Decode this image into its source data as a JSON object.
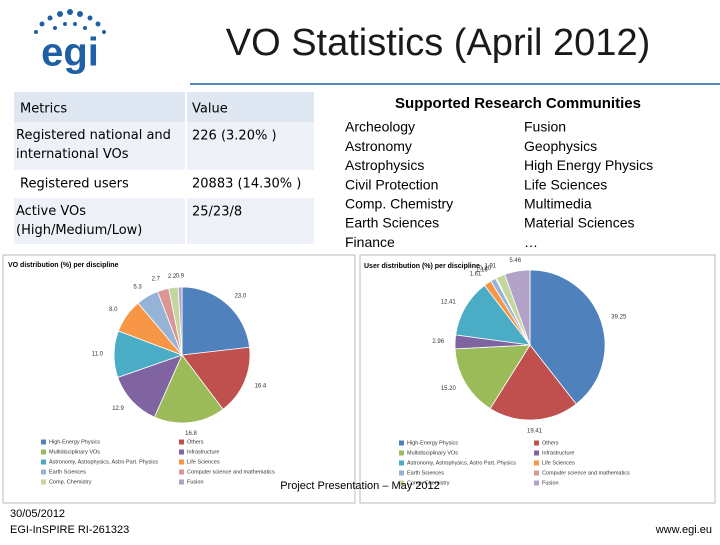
{
  "header": {
    "title": "VO Statistics (April 2012)"
  },
  "table": {
    "columns": [
      "Metrics",
      "Value"
    ],
    "rows": [
      [
        "Registered national and international VOs",
        "226 (3.20% )"
      ],
      [
        "Registered users",
        "20883 (14.30% )"
      ],
      [
        "Active VOs (High/Medium/Low)",
        "25/23/8"
      ]
    ]
  },
  "communities": {
    "title": "Supported Research Communities",
    "left": [
      "Archeology",
      "Astronomy",
      "Astrophysics",
      "Civil Protection",
      "Comp. Chemistry",
      "Earth Sciences",
      "Finance"
    ],
    "right": [
      "Fusion",
      "Geophysics",
      "High Energy Physics",
      "Life Sciences",
      "Multimedia",
      "Material Sciences",
      "…"
    ]
  },
  "chart_data": [
    {
      "type": "pie",
      "title": "VO distribution (%) per discipline",
      "categories": [
        "High-Energy Physics",
        "Others",
        "Multidisciplinary VOs",
        "Infrastructure",
        "Astronomy, Astrophysics, Astro Part. Physics",
        "Life Sciences",
        "Earth Sciences",
        "Computer science and mathematics",
        "Comp. Chemistry",
        "Fusion"
      ],
      "values": [
        23.0,
        16.4,
        16.8,
        12.9,
        11.0,
        8.0,
        5.3,
        2.7,
        2.2,
        0.9
      ],
      "value_labels": [
        "23.0",
        "16.4",
        "16.8",
        "12.9",
        "11.0",
        "8.0",
        "5.3",
        "2.7",
        "2.2",
        "0.9"
      ],
      "colors": [
        "#4f81bd",
        "#c0504d",
        "#9bbb59",
        "#8064a2",
        "#4bacc6",
        "#f79646",
        "#95b3d7",
        "#d99694",
        "#c3d69b",
        "#b3a2c7"
      ]
    },
    {
      "type": "pie",
      "title": "User distribution (%) per discipline",
      "categories": [
        "High-Energy Physics",
        "Others",
        "Multidisciplinary VOs",
        "Infrastructure",
        "Astronomy, Astrophysics, Astro Part. Physics",
        "Life Sciences",
        "Earth Sciences",
        "Computer science and mathematics",
        "Comp. Chemistry",
        "Fusion"
      ],
      "values": [
        39.25,
        19.41,
        15.2,
        2.96,
        12.41,
        1.61,
        1.16,
        0.2,
        1.91,
        5.46
      ],
      "value_labels": [
        "39.25",
        "19.41",
        "15.20",
        "2.96",
        "12.41",
        "1.61",
        "1.16",
        "0.20",
        "1.91",
        "5.46"
      ],
      "colors": [
        "#4f81bd",
        "#c0504d",
        "#9bbb59",
        "#8064a2",
        "#4bacc6",
        "#f79646",
        "#95b3d7",
        "#d99694",
        "#c3d69b",
        "#b3a2c7"
      ]
    }
  ],
  "footer": {
    "date": "30/05/2012",
    "project": "EGI-InSPIRE RI-261323",
    "center": "Project Presentation – May 2012",
    "url": "www.egi.eu"
  }
}
